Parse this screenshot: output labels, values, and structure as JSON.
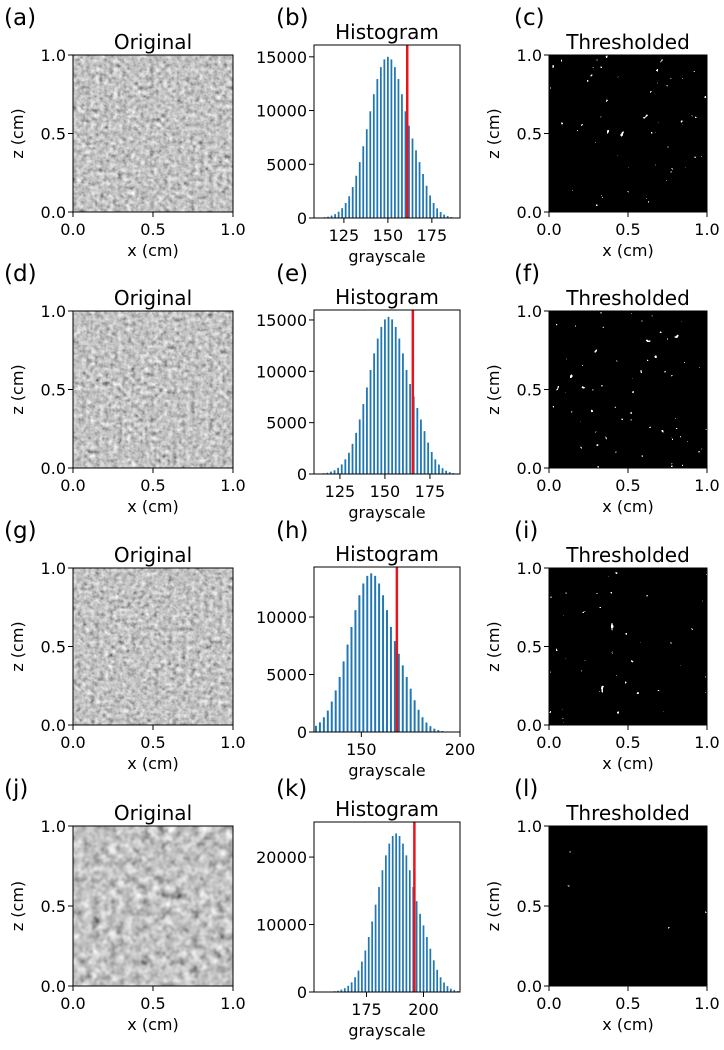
{
  "chart_data": [
    {
      "type": "image",
      "panel_label": "(a)",
      "title": "Original",
      "xlabel": "x (cm)",
      "ylabel": "z (cm)",
      "xlim": [
        0,
        1
      ],
      "ylim": [
        0,
        1
      ],
      "xticks": [
        {
          "value": 0,
          "label": "0.0"
        },
        0.5,
        {
          "value": 1,
          "label": "1.0"
        }
      ],
      "yticks": [
        {
          "value": 0,
          "label": "0.0"
        },
        0.5,
        {
          "value": 1,
          "label": "1.0"
        }
      ]
    },
    {
      "type": "bar",
      "panel_label": "(b)",
      "title": "Histogram",
      "xlabel": "grayscale",
      "color": "#1f77b4",
      "threshold": 161,
      "threshold_color": "#e8141c",
      "xlim": [
        108,
        191
      ],
      "ylim": [
        0,
        16100
      ],
      "xticks": [
        125,
        150,
        175
      ],
      "yticks": [
        0,
        5000,
        10000,
        15000
      ],
      "x": [
        112,
        114,
        116,
        118,
        120,
        122,
        124,
        126,
        128,
        130,
        132,
        134,
        136,
        138,
        140,
        142,
        144,
        146,
        148,
        150,
        152,
        154,
        156,
        158,
        160,
        162,
        164,
        166,
        168,
        170,
        172,
        174,
        176,
        178,
        180,
        182,
        184,
        186,
        188
      ],
      "values": [
        45,
        75,
        120,
        225,
        360,
        585,
        915,
        1395,
        2025,
        2880,
        3930,
        5205,
        6675,
        8265,
        9930,
        11520,
        12930,
        14040,
        14760,
        15000,
        14760,
        14040,
        12930,
        11520,
        9930,
        8595,
        7395,
        6300,
        5205,
        4095,
        3000,
        2100,
        1395,
        900,
        555,
        315,
        180,
        90,
        45
      ]
    },
    {
      "type": "threshold-image",
      "panel_label": "(c)",
      "title": "Thresholded",
      "xlabel": "x (cm)",
      "ylabel": "z (cm)",
      "xlim": [
        0,
        1
      ],
      "ylim": [
        0,
        1
      ],
      "xticks": [
        {
          "value": 0,
          "label": "0.0"
        },
        0.5,
        {
          "value": 1,
          "label": "1.0"
        }
      ],
      "yticks": [
        {
          "value": 0,
          "label": "0.0"
        },
        0.5,
        {
          "value": 1,
          "label": "1.0"
        }
      ]
    },
    {
      "type": "image",
      "panel_label": "(d)",
      "title": "Original",
      "xlabel": "x (cm)",
      "ylabel": "z (cm)",
      "xlim": [
        0,
        1
      ],
      "ylim": [
        0,
        1
      ],
      "xticks": [
        {
          "value": 0,
          "label": "0.0"
        },
        0.5,
        {
          "value": 1,
          "label": "1.0"
        }
      ],
      "yticks": [
        {
          "value": 0,
          "label": "0.0"
        },
        0.5,
        {
          "value": 1,
          "label": "1.0"
        }
      ]
    },
    {
      "type": "bar",
      "panel_label": "(e)",
      "title": "Histogram",
      "xlabel": "grayscale",
      "color": "#1f77b4",
      "threshold": 165.5,
      "threshold_color": "#e8141c",
      "xlim": [
        110.6,
        191.7
      ],
      "ylim": [
        0,
        15970
      ],
      "xticks": [
        125,
        150,
        175
      ],
      "yticks": [
        0,
        5000,
        10000,
        15000
      ],
      "x": [
        114,
        116,
        118,
        120,
        122,
        124,
        126,
        128,
        130,
        132,
        134,
        136,
        138,
        140,
        142,
        144,
        146,
        148,
        150,
        152,
        154,
        156,
        158,
        160,
        162,
        164,
        166,
        168,
        170,
        172,
        174,
        176,
        178,
        180,
        182,
        184,
        186,
        188,
        190
      ],
      "values": [
        46,
        77,
        122,
        230,
        367,
        597,
        933,
        1423,
        2066,
        2938,
        4009,
        5309,
        6809,
        8430,
        10129,
        11750,
        13189,
        14321,
        15055,
        15300,
        15055,
        14321,
        13189,
        11750,
        10129,
        8767,
        7543,
        6426,
        5309,
        4177,
        3060,
        2142,
        1423,
        918,
        566,
        321,
        184,
        92,
        46
      ]
    },
    {
      "type": "threshold-image",
      "panel_label": "(f)",
      "title": "Thresholded",
      "xlabel": "x (cm)",
      "ylabel": "z (cm)",
      "xlim": [
        0,
        1
      ],
      "ylim": [
        0,
        1
      ],
      "xticks": [
        {
          "value": 0,
          "label": "0.0"
        },
        0.5,
        {
          "value": 1,
          "label": "1.0"
        }
      ],
      "yticks": [
        {
          "value": 0,
          "label": "0.0"
        },
        0.5,
        {
          "value": 1,
          "label": "1.0"
        }
      ]
    },
    {
      "type": "image",
      "panel_label": "(g)",
      "title": "Original",
      "xlabel": "x (cm)",
      "ylabel": "z (cm)",
      "xlim": [
        0,
        1
      ],
      "ylim": [
        0,
        1
      ],
      "xticks": [
        {
          "value": 0,
          "label": "0.0"
        },
        0.5,
        {
          "value": 1,
          "label": "1.0"
        }
      ],
      "yticks": [
        {
          "value": 0,
          "label": "0.0"
        },
        0.5,
        {
          "value": 1,
          "label": "1.0"
        }
      ]
    },
    {
      "type": "bar",
      "panel_label": "(h)",
      "title": "Histogram",
      "xlabel": "grayscale",
      "color": "#1f77b4",
      "threshold": 168,
      "threshold_color": "#e8141c",
      "xlim": [
        126,
        200
      ],
      "ylim": [
        0,
        14350
      ],
      "xticks": [
        150,
        200
      ],
      "yticks": [
        0,
        5000,
        10000
      ],
      "x": [
        127,
        129,
        131,
        133,
        135,
        137,
        139,
        141,
        143,
        145,
        147,
        149,
        151,
        153,
        155,
        157,
        159,
        161,
        163,
        165,
        167,
        169,
        171,
        173,
        175,
        177,
        179,
        181,
        183,
        185,
        187,
        189,
        191,
        193
      ],
      "values": [
        538,
        842,
        1283,
        1863,
        2650,
        3616,
        4789,
        6141,
        7604,
        9136,
        10598,
        11896,
        12917,
        13579,
        13800,
        13579,
        12917,
        11896,
        10598,
        9136,
        7907,
        6803,
        5796,
        4789,
        3767,
        2760,
        1932,
        1283,
        828,
        511,
        290,
        166,
        83,
        41
      ]
    },
    {
      "type": "threshold-image",
      "panel_label": "(i)",
      "title": "Thresholded",
      "xlabel": "x (cm)",
      "ylabel": "z (cm)",
      "xlim": [
        0,
        1
      ],
      "ylim": [
        0,
        1
      ],
      "xticks": [
        {
          "value": 0,
          "label": "0.0"
        },
        0.5,
        {
          "value": 1,
          "label": "1.0"
        }
      ],
      "yticks": [
        {
          "value": 0,
          "label": "0.0"
        },
        0.5,
        {
          "value": 1,
          "label": "1.0"
        }
      ]
    },
    {
      "type": "image",
      "panel_label": "(j)",
      "title": "Original",
      "xlabel": "x (cm)",
      "ylabel": "z (cm)",
      "xlim": [
        0,
        1
      ],
      "ylim": [
        0,
        1
      ],
      "xticks": [
        {
          "value": 0,
          "label": "0.0"
        },
        0.5,
        {
          "value": 1,
          "label": "1.0"
        }
      ],
      "yticks": [
        {
          "value": 0,
          "label": "0.0"
        },
        0.5,
        {
          "value": 1,
          "label": "1.0"
        }
      ]
    },
    {
      "type": "bar",
      "panel_label": "(k)",
      "title": "Histogram",
      "xlabel": "grayscale",
      "color": "#1f77b4",
      "threshold": 196,
      "threshold_color": "#e8141c",
      "xlim": [
        152,
        216
      ],
      "ylim": [
        0,
        25200
      ],
      "xticks": [
        175,
        200
      ],
      "yticks": [
        0,
        10000,
        20000
      ],
      "x": [
        161,
        162.5,
        164,
        165.5,
        167,
        168.5,
        170,
        171.5,
        173,
        174.5,
        176,
        177.5,
        179,
        180.5,
        182,
        183.5,
        185,
        186.5,
        188,
        189.5,
        191,
        192.5,
        194,
        195.5,
        197,
        198.5,
        200,
        201.5,
        203,
        204.5,
        206,
        207.5,
        209,
        210.5,
        212,
        213.5,
        215
      ],
      "values": [
        118,
        188,
        353,
        564,
        917,
        1434,
        2186,
        3173,
        4512,
        6157,
        8155,
        10458,
        12949,
        15557,
        18048,
        20257,
        21996,
        23124,
        23500,
        23124,
        21996,
        20257,
        18048,
        15557,
        13466,
        11586,
        9870,
        8155,
        6416,
        4700,
        3290,
        2186,
        1410,
        870,
        494,
        282,
        141
      ]
    },
    {
      "type": "threshold-image",
      "panel_label": "(l)",
      "title": "Thresholded",
      "xlabel": "x (cm)",
      "ylabel": "z (cm)",
      "xlim": [
        0,
        1
      ],
      "ylim": [
        0,
        1
      ],
      "xticks": [
        {
          "value": 0,
          "label": "0.0"
        },
        0.5,
        {
          "value": 1,
          "label": "1.0"
        }
      ],
      "yticks": [
        {
          "value": 0,
          "label": "0.0"
        },
        0.5,
        {
          "value": 1,
          "label": "1.0"
        }
      ]
    }
  ]
}
